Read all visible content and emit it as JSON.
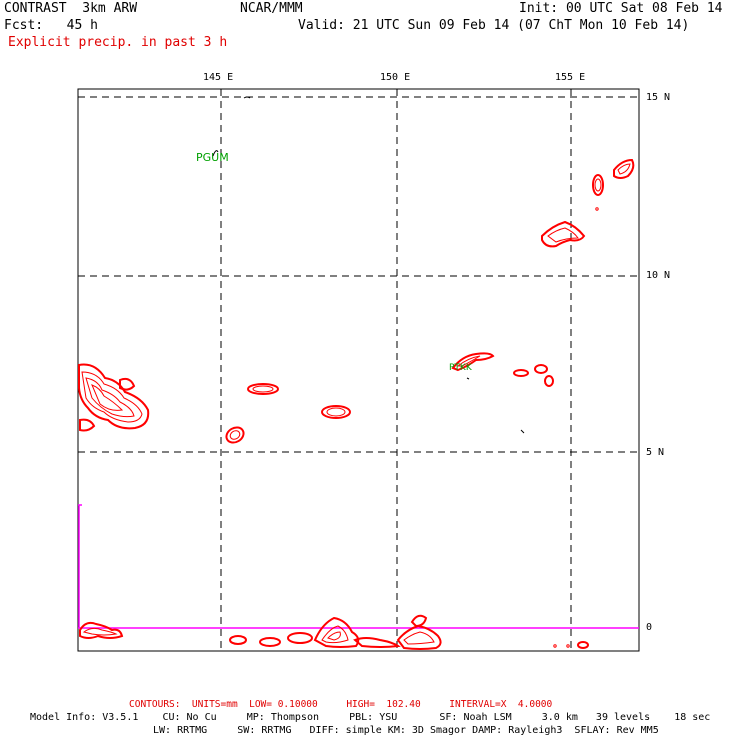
{
  "header": {
    "model": "CONTRAST  3km ARW",
    "org": "NCAR/MMM",
    "init": "Init: 00 UTC Sat 08 Feb 14",
    "fcst": "Fcst:   45 h",
    "valid": "Valid: 21 UTC Sun 09 Feb 14 (07 ChT Mon 10 Feb 14)",
    "field": "Explicit precip. in past 3 h"
  },
  "map": {
    "lon_labels": [
      "145 E",
      "150 E",
      "155 E"
    ],
    "lat_labels": [
      "15 N",
      "10 N",
      "5 N",
      "0"
    ],
    "stations": [
      "PGUM",
      "PTKK"
    ],
    "colors": {
      "precip": "#ff0000",
      "station": "#00a000",
      "equator": "#ff00ff"
    }
  },
  "footer": {
    "contours": "CONTOURS:  UNITS=mm  LOW= 0.10000     HIGH=  102.40     INTERVAL=X  4.0000",
    "info1": "Model Info: V3.5.1    CU: No Cu     MP: Thompson     PBL: YSU       SF: Noah LSM     3.0 km   39 levels    18 sec",
    "info2": "LW: RRTMG     SW: RRTMG   DIFF: simple KM: 3D Smagor DAMP: Rayleigh3  SFLAY: Rev MM5"
  }
}
